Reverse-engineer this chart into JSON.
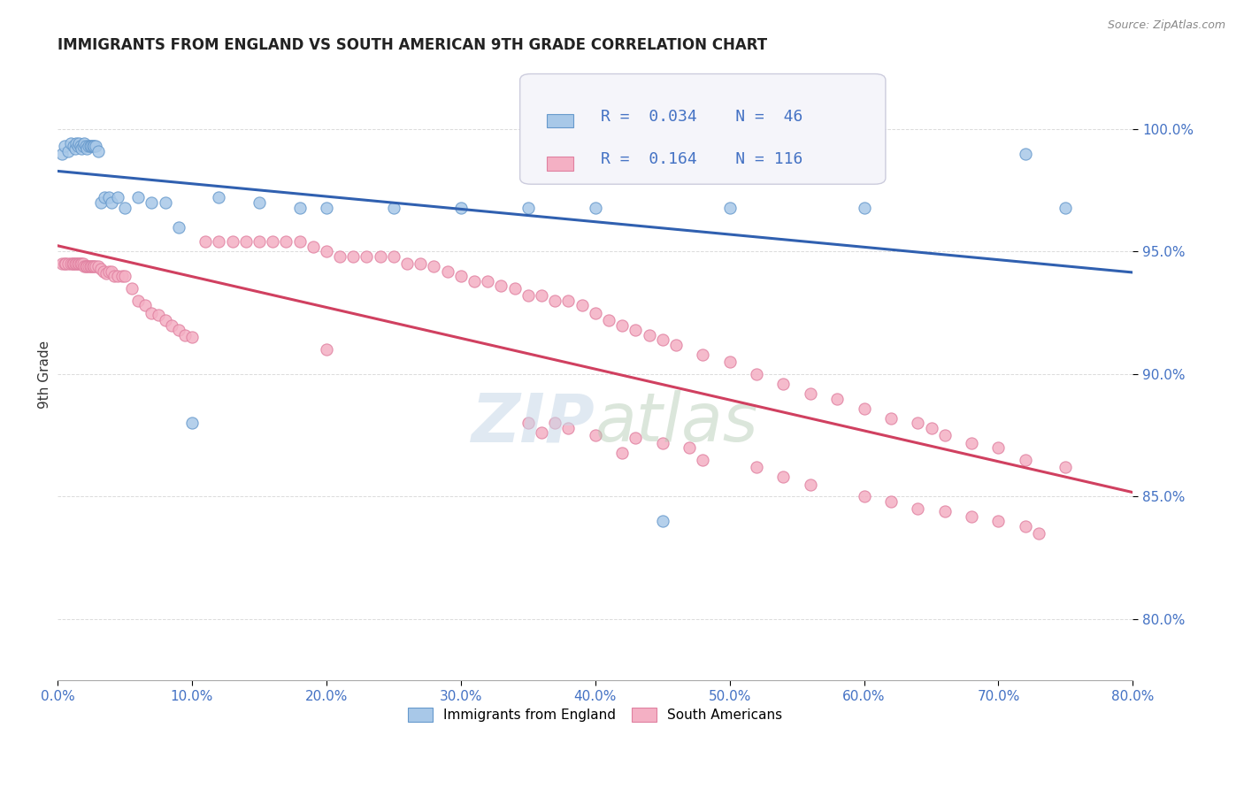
{
  "title": "IMMIGRANTS FROM ENGLAND VS SOUTH AMERICAN 9TH GRADE CORRELATION CHART",
  "source": "Source: ZipAtlas.com",
  "ylabel": "9th Grade",
  "ytick_values": [
    0.8,
    0.85,
    0.9,
    0.95,
    1.0
  ],
  "xmin": 0.0,
  "xmax": 0.8,
  "ymin": 0.775,
  "ymax": 1.025,
  "england_R": 0.034,
  "england_N": 46,
  "sa_R": 0.164,
  "sa_N": 116,
  "england_color": "#a8c8e8",
  "england_edge": "#6699cc",
  "sa_color": "#f4b0c4",
  "sa_edge": "#e080a0",
  "england_line_color": "#3060b0",
  "sa_line_color": "#d04060",
  "england_x": [
    0.003,
    0.005,
    0.008,
    0.01,
    0.012,
    0.013,
    0.014,
    0.015,
    0.016,
    0.017,
    0.018,
    0.019,
    0.02,
    0.021,
    0.022,
    0.023,
    0.024,
    0.025,
    0.026,
    0.027,
    0.028,
    0.03,
    0.032,
    0.035,
    0.038,
    0.04,
    0.045,
    0.05,
    0.06,
    0.07,
    0.08,
    0.09,
    0.1,
    0.12,
    0.15,
    0.18,
    0.2,
    0.25,
    0.3,
    0.35,
    0.4,
    0.45,
    0.5,
    0.6,
    0.72,
    0.75
  ],
  "england_y": [
    0.99,
    0.993,
    0.991,
    0.994,
    0.993,
    0.992,
    0.994,
    0.993,
    0.994,
    0.993,
    0.992,
    0.993,
    0.994,
    0.993,
    0.992,
    0.993,
    0.993,
    0.993,
    0.993,
    0.993,
    0.993,
    0.991,
    0.97,
    0.972,
    0.972,
    0.97,
    0.972,
    0.968,
    0.972,
    0.97,
    0.97,
    0.96,
    0.88,
    0.972,
    0.97,
    0.968,
    0.968,
    0.968,
    0.968,
    0.968,
    0.968,
    0.84,
    0.968,
    0.968,
    0.99,
    0.968
  ],
  "sa_x": [
    0.003,
    0.005,
    0.006,
    0.008,
    0.01,
    0.011,
    0.012,
    0.013,
    0.014,
    0.015,
    0.016,
    0.017,
    0.018,
    0.019,
    0.02,
    0.021,
    0.022,
    0.023,
    0.024,
    0.025,
    0.026,
    0.027,
    0.028,
    0.03,
    0.032,
    0.034,
    0.036,
    0.038,
    0.04,
    0.042,
    0.045,
    0.048,
    0.05,
    0.055,
    0.06,
    0.065,
    0.07,
    0.075,
    0.08,
    0.085,
    0.09,
    0.095,
    0.1,
    0.11,
    0.12,
    0.13,
    0.14,
    0.15,
    0.16,
    0.17,
    0.18,
    0.19,
    0.2,
    0.21,
    0.22,
    0.23,
    0.24,
    0.25,
    0.26,
    0.27,
    0.28,
    0.29,
    0.3,
    0.31,
    0.32,
    0.33,
    0.34,
    0.35,
    0.36,
    0.37,
    0.38,
    0.39,
    0.4,
    0.41,
    0.42,
    0.43,
    0.44,
    0.45,
    0.46,
    0.48,
    0.5,
    0.52,
    0.54,
    0.56,
    0.58,
    0.6,
    0.62,
    0.64,
    0.65,
    0.66,
    0.68,
    0.7,
    0.72,
    0.75,
    0.2,
    0.35,
    0.37,
    0.38,
    0.36,
    0.4,
    0.43,
    0.45,
    0.47,
    0.42,
    0.48,
    0.52,
    0.54,
    0.56,
    0.6,
    0.62,
    0.64,
    0.66,
    0.68,
    0.7,
    0.72,
    0.73
  ],
  "sa_y": [
    0.945,
    0.945,
    0.945,
    0.945,
    0.945,
    0.945,
    0.945,
    0.945,
    0.945,
    0.945,
    0.945,
    0.945,
    0.945,
    0.945,
    0.944,
    0.944,
    0.944,
    0.944,
    0.944,
    0.944,
    0.944,
    0.944,
    0.944,
    0.944,
    0.943,
    0.942,
    0.941,
    0.942,
    0.942,
    0.94,
    0.94,
    0.94,
    0.94,
    0.935,
    0.93,
    0.928,
    0.925,
    0.924,
    0.922,
    0.92,
    0.918,
    0.916,
    0.915,
    0.954,
    0.954,
    0.954,
    0.954,
    0.954,
    0.954,
    0.954,
    0.954,
    0.952,
    0.95,
    0.948,
    0.948,
    0.948,
    0.948,
    0.948,
    0.945,
    0.945,
    0.944,
    0.942,
    0.94,
    0.938,
    0.938,
    0.936,
    0.935,
    0.932,
    0.932,
    0.93,
    0.93,
    0.928,
    0.925,
    0.922,
    0.92,
    0.918,
    0.916,
    0.914,
    0.912,
    0.908,
    0.905,
    0.9,
    0.896,
    0.892,
    0.89,
    0.886,
    0.882,
    0.88,
    0.878,
    0.875,
    0.872,
    0.87,
    0.865,
    0.862,
    0.91,
    0.88,
    0.88,
    0.878,
    0.876,
    0.875,
    0.874,
    0.872,
    0.87,
    0.868,
    0.865,
    0.862,
    0.858,
    0.855,
    0.85,
    0.848,
    0.845,
    0.844,
    0.842,
    0.84,
    0.838,
    0.835
  ]
}
